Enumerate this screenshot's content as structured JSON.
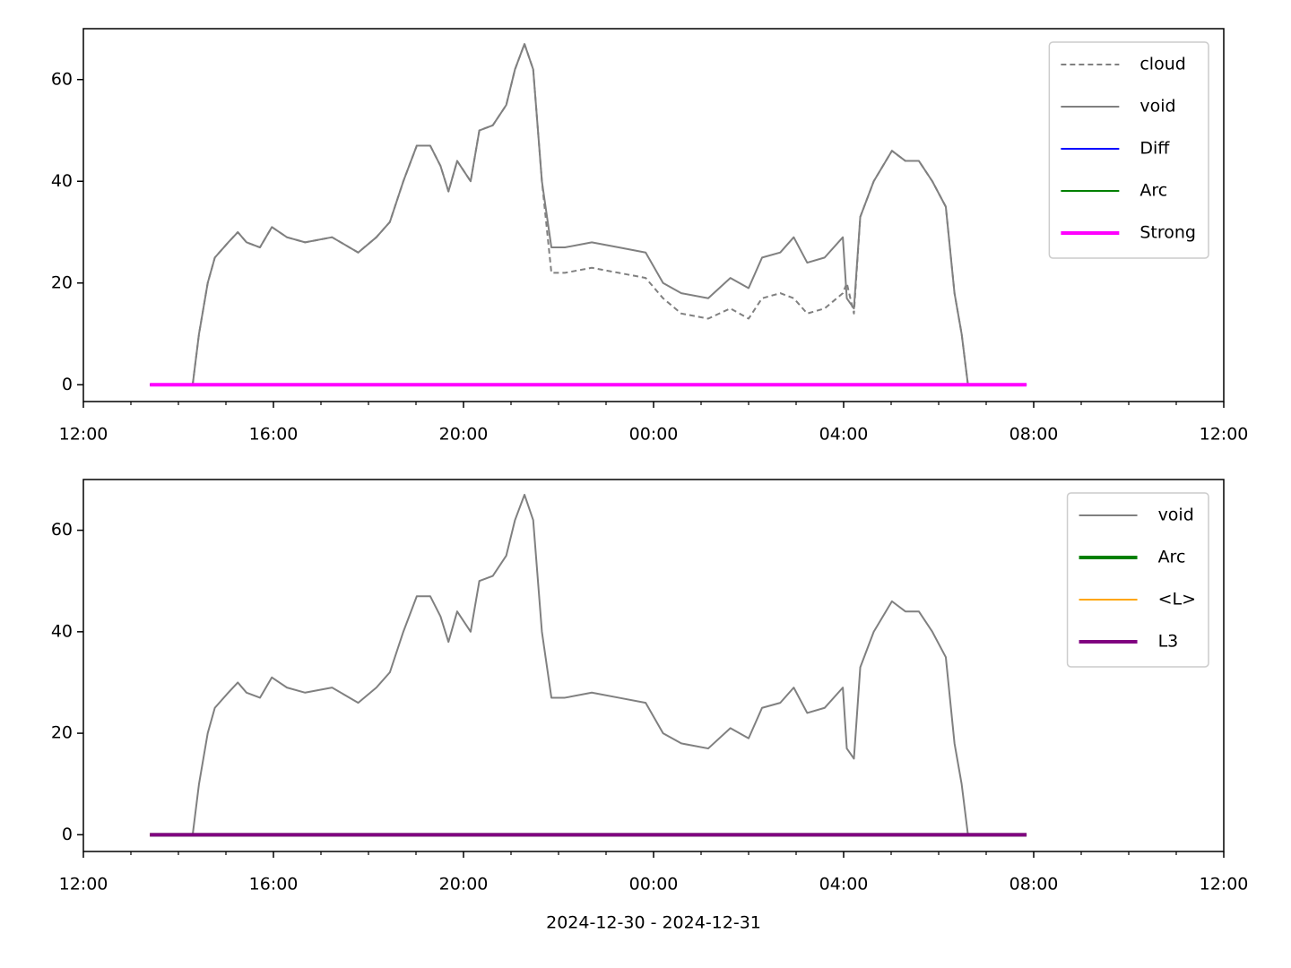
{
  "chart_data": [
    {
      "type": "line",
      "x": [
        "2024-12-30T13:24",
        "2024-12-30T14:18",
        "2024-12-30T14:26",
        "2024-12-30T14:37",
        "2024-12-30T14:46",
        "2024-12-30T15:03",
        "2024-12-30T15:15",
        "2024-12-30T15:26",
        "2024-12-30T15:43",
        "2024-12-30T15:58",
        "2024-12-30T16:17",
        "2024-12-30T16:40",
        "2024-12-30T17:14",
        "2024-12-30T17:47",
        "2024-12-30T18:10",
        "2024-12-30T18:27",
        "2024-12-30T18:44",
        "2024-12-30T19:01",
        "2024-12-30T19:18",
        "2024-12-30T19:31",
        "2024-12-30T19:41",
        "2024-12-30T19:52",
        "2024-12-30T20:09",
        "2024-12-30T20:20",
        "2024-12-30T20:37",
        "2024-12-30T20:54",
        "2024-12-30T21:05",
        "2024-12-30T21:17",
        "2024-12-30T21:28",
        "2024-12-30T21:39",
        "2024-12-30T21:51",
        "2024-12-30T22:08",
        "2024-12-30T22:42",
        "2024-12-30T23:16",
        "2024-12-30T23:50",
        "2024-12-31T00:12",
        "2024-12-31T00:35",
        "2024-12-31T01:09",
        "2024-12-31T01:37",
        "2024-12-31T02:00",
        "2024-12-31T02:17",
        "2024-12-31T02:40",
        "2024-12-31T02:57",
        "2024-12-31T03:14",
        "2024-12-31T03:36",
        "2024-12-31T03:59",
        "2024-12-31T04:04",
        "2024-12-31T04:13",
        "2024-12-31T04:21",
        "2024-12-31T04:38",
        "2024-12-31T05:01",
        "2024-12-31T05:18",
        "2024-12-31T05:35",
        "2024-12-31T05:52",
        "2024-12-31T06:09",
        "2024-12-31T06:20",
        "2024-12-31T06:29",
        "2024-12-31T06:37",
        "2024-12-31T07:51"
      ],
      "series": [
        {
          "name": "cloud",
          "color": "#808080",
          "linestyle": "dashed",
          "linewidth": 2,
          "values": [
            null,
            0,
            10,
            20,
            25,
            28,
            30,
            28,
            27,
            31,
            29,
            28,
            29,
            26,
            29,
            32,
            40,
            47,
            47,
            43,
            38,
            44,
            40,
            50,
            51,
            55,
            62,
            67,
            62,
            40,
            22,
            22,
            23,
            22,
            21,
            17,
            14,
            13,
            15,
            13,
            17,
            18,
            17,
            14,
            15,
            18,
            20,
            14,
            33,
            40,
            46,
            44,
            44,
            40,
            35,
            18,
            10,
            0,
            0
          ]
        },
        {
          "name": "void",
          "color": "#808080",
          "linestyle": "solid",
          "linewidth": 2,
          "values": [
            null,
            0,
            10,
            20,
            25,
            28,
            30,
            28,
            27,
            31,
            29,
            28,
            29,
            26,
            29,
            32,
            40,
            47,
            47,
            43,
            38,
            44,
            40,
            50,
            51,
            55,
            62,
            67,
            62,
            40,
            27,
            27,
            28,
            27,
            26,
            20,
            18,
            17,
            21,
            19,
            25,
            26,
            29,
            24,
            25,
            29,
            17,
            15,
            33,
            40,
            46,
            44,
            44,
            40,
            35,
            18,
            10,
            0,
            0
          ]
        },
        {
          "name": "Diff",
          "color": "#0000ff",
          "linestyle": "solid",
          "linewidth": 2,
          "values": [
            0,
            0,
            0,
            0,
            0,
            0,
            0,
            0,
            0,
            0,
            0,
            0,
            0,
            0,
            0,
            0,
            0,
            0,
            0,
            0,
            0,
            0,
            0,
            0,
            0,
            0,
            0,
            0,
            0,
            0,
            0,
            0,
            0,
            0,
            0,
            0,
            0,
            0,
            0,
            0,
            0,
            0,
            0,
            0,
            0,
            0,
            0,
            0,
            0,
            0,
            0,
            0,
            0,
            0,
            0,
            0,
            0,
            0,
            0
          ]
        },
        {
          "name": "Arc",
          "color": "#008000",
          "linestyle": "solid",
          "linewidth": 2,
          "values": [
            0,
            0,
            0,
            0,
            0,
            0,
            0,
            0,
            0,
            0,
            0,
            0,
            0,
            0,
            0,
            0,
            0,
            0,
            0,
            0,
            0,
            0,
            0,
            0,
            0,
            0,
            0,
            0,
            0,
            0,
            0,
            0,
            0,
            0,
            0,
            0,
            0,
            0,
            0,
            0,
            0,
            0,
            0,
            0,
            0,
            0,
            0,
            0,
            0,
            0,
            0,
            0,
            0,
            0,
            0,
            0,
            0,
            0,
            0
          ]
        },
        {
          "name": "Strong",
          "color": "#ff00ff",
          "linestyle": "solid",
          "linewidth": 4,
          "values": [
            0,
            0,
            0,
            0,
            0,
            0,
            0,
            0,
            0,
            0,
            0,
            0,
            0,
            0,
            0,
            0,
            0,
            0,
            0,
            0,
            0,
            0,
            0,
            0,
            0,
            0,
            0,
            0,
            0,
            0,
            0,
            0,
            0,
            0,
            0,
            0,
            0,
            0,
            0,
            0,
            0,
            0,
            0,
            0,
            0,
            0,
            0,
            0,
            0,
            0,
            0,
            0,
            0,
            0,
            0,
            0,
            0,
            0,
            0
          ]
        }
      ],
      "xlim": [
        "2024-12-30T12:00",
        "2024-12-31T12:00"
      ],
      "xticks": [
        {
          "value": "2024-12-30T12:00",
          "label": "12:00"
        },
        {
          "value": "2024-12-30T16:00",
          "label": "16:00"
        },
        {
          "value": "2024-12-30T20:00",
          "label": "20:00"
        },
        {
          "value": "2024-12-31T00:00",
          "label": "00:00"
        },
        {
          "value": "2024-12-31T04:00",
          "label": "04:00"
        },
        {
          "value": "2024-12-31T08:00",
          "label": "08:00"
        },
        {
          "value": "2024-12-31T12:00",
          "label": "12:00"
        }
      ],
      "xminorticks": [
        "2024-12-30T13:00",
        "2024-12-30T14:00",
        "2024-12-30T15:00",
        "2024-12-30T17:00",
        "2024-12-30T18:00",
        "2024-12-30T19:00",
        "2024-12-30T21:00",
        "2024-12-30T22:00",
        "2024-12-30T23:00",
        "2024-12-31T01:00",
        "2024-12-31T02:00",
        "2024-12-31T03:00",
        "2024-12-31T05:00",
        "2024-12-31T06:00",
        "2024-12-31T07:00",
        "2024-12-31T09:00",
        "2024-12-31T10:00",
        "2024-12-31T11:00"
      ],
      "ylim": [
        -3.3,
        70
      ],
      "yticks": [
        0,
        20,
        40,
        60
      ],
      "legend": "upper right"
    },
    {
      "type": "line",
      "x": [
        "2024-12-30T13:24",
        "2024-12-30T14:18",
        "2024-12-30T14:26",
        "2024-12-30T14:37",
        "2024-12-30T14:46",
        "2024-12-30T15:03",
        "2024-12-30T15:15",
        "2024-12-30T15:26",
        "2024-12-30T15:43",
        "2024-12-30T15:58",
        "2024-12-30T16:17",
        "2024-12-30T16:40",
        "2024-12-30T17:14",
        "2024-12-30T17:47",
        "2024-12-30T18:10",
        "2024-12-30T18:27",
        "2024-12-30T18:44",
        "2024-12-30T19:01",
        "2024-12-30T19:18",
        "2024-12-30T19:31",
        "2024-12-30T19:41",
        "2024-12-30T19:52",
        "2024-12-30T20:09",
        "2024-12-30T20:20",
        "2024-12-30T20:37",
        "2024-12-30T20:54",
        "2024-12-30T21:05",
        "2024-12-30T21:17",
        "2024-12-30T21:28",
        "2024-12-30T21:39",
        "2024-12-30T21:51",
        "2024-12-30T22:08",
        "2024-12-30T22:42",
        "2024-12-30T23:16",
        "2024-12-30T23:50",
        "2024-12-31T00:12",
        "2024-12-31T00:35",
        "2024-12-31T01:09",
        "2024-12-31T01:37",
        "2024-12-31T02:00",
        "2024-12-31T02:17",
        "2024-12-31T02:40",
        "2024-12-31T02:57",
        "2024-12-31T03:14",
        "2024-12-31T03:36",
        "2024-12-31T03:59",
        "2024-12-31T04:04",
        "2024-12-31T04:13",
        "2024-12-31T04:21",
        "2024-12-31T04:38",
        "2024-12-31T05:01",
        "2024-12-31T05:18",
        "2024-12-31T05:35",
        "2024-12-31T05:52",
        "2024-12-31T06:09",
        "2024-12-31T06:20",
        "2024-12-31T06:29",
        "2024-12-31T06:37",
        "2024-12-31T07:51"
      ],
      "series": [
        {
          "name": "void",
          "color": "#808080",
          "linestyle": "solid",
          "linewidth": 2,
          "values": [
            null,
            0,
            10,
            20,
            25,
            28,
            30,
            28,
            27,
            31,
            29,
            28,
            29,
            26,
            29,
            32,
            40,
            47,
            47,
            43,
            38,
            44,
            40,
            50,
            51,
            55,
            62,
            67,
            62,
            40,
            27,
            27,
            28,
            27,
            26,
            20,
            18,
            17,
            21,
            19,
            25,
            26,
            29,
            24,
            25,
            29,
            17,
            15,
            33,
            40,
            46,
            44,
            44,
            40,
            35,
            18,
            10,
            0,
            0
          ]
        },
        {
          "name": "Arc",
          "color": "#008000",
          "linestyle": "solid",
          "linewidth": 4,
          "values": [
            0,
            0,
            0,
            0,
            0,
            0,
            0,
            0,
            0,
            0,
            0,
            0,
            0,
            0,
            0,
            0,
            0,
            0,
            0,
            0,
            0,
            0,
            0,
            0,
            0,
            0,
            0,
            0,
            0,
            0,
            0,
            0,
            0,
            0,
            0,
            0,
            0,
            0,
            0,
            0,
            0,
            0,
            0,
            0,
            0,
            0,
            0,
            0,
            0,
            0,
            0,
            0,
            0,
            0,
            0,
            0,
            0,
            0,
            0
          ]
        },
        {
          "name": "<L>",
          "color": "#ffa500",
          "linestyle": "solid",
          "linewidth": 2,
          "values": [
            0,
            0,
            0,
            0,
            0,
            0,
            0,
            0,
            0,
            0,
            0,
            0,
            0,
            0,
            0,
            0,
            0,
            0,
            0,
            0,
            0,
            0,
            0,
            0,
            0,
            0,
            0,
            0,
            0,
            0,
            0,
            0,
            0,
            0,
            0,
            0,
            0,
            0,
            0,
            0,
            0,
            0,
            0,
            0,
            0,
            0,
            0,
            0,
            0,
            0,
            0,
            0,
            0,
            0,
            0,
            0,
            0,
            0,
            0
          ]
        },
        {
          "name": "L3",
          "color": "#800080",
          "linestyle": "solid",
          "linewidth": 4,
          "values": [
            0,
            0,
            0,
            0,
            0,
            0,
            0,
            0,
            0,
            0,
            0,
            0,
            0,
            0,
            0,
            0,
            0,
            0,
            0,
            0,
            0,
            0,
            0,
            0,
            0,
            0,
            0,
            0,
            0,
            0,
            0,
            0,
            0,
            0,
            0,
            0,
            0,
            0,
            0,
            0,
            0,
            0,
            0,
            0,
            0,
            0,
            0,
            0,
            0,
            0,
            0,
            0,
            0,
            0,
            0,
            0,
            0,
            0,
            0
          ]
        }
      ],
      "xlim": [
        "2024-12-30T12:00",
        "2024-12-31T12:00"
      ],
      "xticks": [
        {
          "value": "2024-12-30T12:00",
          "label": "12:00"
        },
        {
          "value": "2024-12-30T16:00",
          "label": "16:00"
        },
        {
          "value": "2024-12-30T20:00",
          "label": "20:00"
        },
        {
          "value": "2024-12-31T00:00",
          "label": "00:00"
        },
        {
          "value": "2024-12-31T04:00",
          "label": "04:00"
        },
        {
          "value": "2024-12-31T08:00",
          "label": "08:00"
        },
        {
          "value": "2024-12-31T12:00",
          "label": "12:00"
        }
      ],
      "xminorticks": [
        "2024-12-30T13:00",
        "2024-12-30T14:00",
        "2024-12-30T15:00",
        "2024-12-30T17:00",
        "2024-12-30T18:00",
        "2024-12-30T19:00",
        "2024-12-30T21:00",
        "2024-12-30T22:00",
        "2024-12-30T23:00",
        "2024-12-31T01:00",
        "2024-12-31T02:00",
        "2024-12-31T03:00",
        "2024-12-31T05:00",
        "2024-12-31T06:00",
        "2024-12-31T07:00",
        "2024-12-31T09:00",
        "2024-12-31T10:00",
        "2024-12-31T11:00"
      ],
      "ylim": [
        -3.3,
        70
      ],
      "yticks": [
        0,
        20,
        40,
        60
      ],
      "legend": "upper right",
      "xlabel": "2024-12-30 - 2024-12-31"
    }
  ]
}
